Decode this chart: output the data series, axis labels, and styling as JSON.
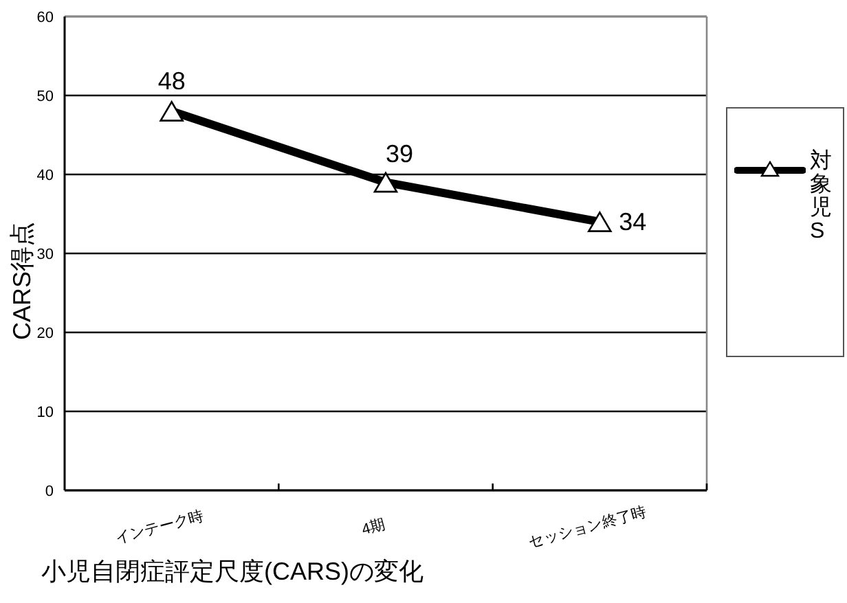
{
  "chart_data": {
    "type": "line",
    "xlabel": "小児自閉症評定尺度(CARS)の変化",
    "ylabel": "CARS得点",
    "categories": [
      "インテーク時",
      "4期",
      "セッション終了時"
    ],
    "series": [
      {
        "name": "対象児S",
        "color": "#000000",
        "values": [
          48,
          39,
          34
        ]
      }
    ],
    "ylim": [
      0,
      60
    ],
    "yticks": [
      0,
      10,
      20,
      30,
      40,
      50,
      60
    ],
    "grid": "y",
    "legend": "right",
    "marker": "triangle",
    "line_style": "solid",
    "data_labels": true
  }
}
